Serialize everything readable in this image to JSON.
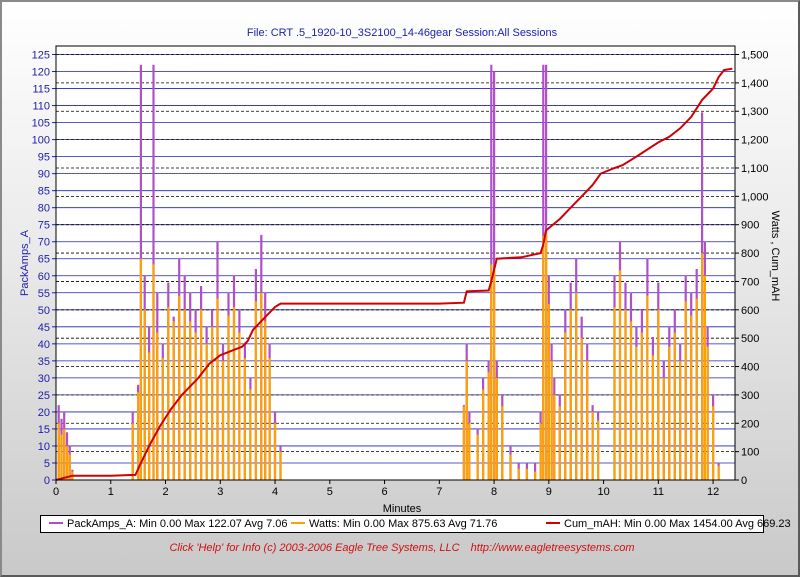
{
  "file_label": "File: CRT .5_1920-10_3S2100_14-46gear   Session:All Sessions",
  "footer": {
    "help": "Click 'Help' for Info  (c) 2003-2006 Eagle Tree Systems, LLC",
    "url": "http://www.eagletreesystems.com"
  },
  "chart_data": {
    "type": "line",
    "xlabel": "Minutes",
    "ylabel_left": "PackAmps_A",
    "ylabel_right": "Watts , Cum_mAH",
    "xlim": [
      0,
      12.4
    ],
    "ylim_left": [
      0,
      127.5
    ],
    "ylim_right": [
      0,
      1530
    ],
    "x_ticks": [
      0,
      1,
      2,
      3,
      4,
      5,
      6,
      7,
      8,
      9,
      10,
      11,
      12
    ],
    "y_ticks_left": [
      0,
      5,
      10,
      15,
      20,
      25,
      30,
      35,
      40,
      45,
      50,
      55,
      60,
      65,
      70,
      75,
      80,
      85,
      90,
      95,
      100,
      105,
      110,
      115,
      120,
      125
    ],
    "y_ticks_right": [
      0,
      100,
      200,
      300,
      400,
      500,
      600,
      700,
      800,
      900,
      1000,
      1100,
      1200,
      1300,
      1400,
      1500
    ],
    "y_tick_labels_right": [
      "0",
      "100",
      "200",
      "300",
      "400",
      "500",
      "600",
      "700",
      "800",
      "900",
      "1,000",
      "1,100",
      "1,200",
      "1,300",
      "1,400",
      "1,500"
    ],
    "grid": true,
    "legend_placement": "bottom",
    "colors": {
      "PackAmps_A": "#b050c8",
      "Watts": "#ffa000",
      "Cum_mAH": "#d00000"
    },
    "legend": [
      "PackAmps_A:  Min 0.00 Max 122.07 Avg 7.06",
      "Watts:  Min 0.00 Max 875.63 Avg 71.76",
      "Cum_mAH:  Min 0.00 Max 1454.00 Avg 669.23"
    ],
    "series": [
      {
        "name": "Cum_mAH",
        "axis": "right",
        "x": [
          0,
          0.3,
          0.5,
          1.0,
          1.45,
          1.55,
          1.7,
          1.9,
          2.1,
          2.3,
          2.6,
          2.8,
          3.0,
          3.2,
          3.4,
          3.5,
          3.6,
          3.75,
          3.9,
          4.0,
          4.1,
          4.5,
          5.0,
          6.0,
          7.0,
          7.45,
          7.5,
          7.9,
          7.95,
          8.05,
          8.5,
          8.85,
          8.9,
          8.95,
          9.2,
          9.4,
          9.6,
          9.8,
          9.95,
          10.2,
          10.35,
          10.6,
          11.0,
          11.2,
          11.4,
          11.6,
          11.8,
          12.0,
          12.1,
          12.2,
          12.35
        ],
        "y": [
          0,
          15,
          15,
          15,
          18,
          60,
          120,
          190,
          250,
          300,
          360,
          410,
          440,
          455,
          470,
          490,
          530,
          560,
          590,
          610,
          622,
          622,
          622,
          622,
          622,
          625,
          665,
          668,
          700,
          780,
          785,
          800,
          830,
          880,
          920,
          960,
          1000,
          1040,
          1080,
          1100,
          1110,
          1140,
          1190,
          1210,
          1240,
          1280,
          1340,
          1380,
          1420,
          1445,
          1450
        ]
      },
      {
        "name": "PackAmps_A",
        "axis": "left",
        "x": [
          0.05,
          0.1,
          0.15,
          0.2,
          0.25,
          0.3,
          1.4,
          1.5,
          1.55,
          1.62,
          1.7,
          1.78,
          1.85,
          1.95,
          2.05,
          2.15,
          2.25,
          2.35,
          2.45,
          2.55,
          2.65,
          2.75,
          2.85,
          2.95,
          3.05,
          3.15,
          3.25,
          3.35,
          3.45,
          3.55,
          3.65,
          3.75,
          3.82,
          3.9,
          4.0,
          4.1,
          7.45,
          7.5,
          7.55,
          7.7,
          7.8,
          7.9,
          7.95,
          8.0,
          8.05,
          8.15,
          8.3,
          8.45,
          8.6,
          8.75,
          8.85,
          8.9,
          8.95,
          9.0,
          9.05,
          9.1,
          9.2,
          9.3,
          9.4,
          9.5,
          9.6,
          9.7,
          9.8,
          9.9,
          10.2,
          10.3,
          10.4,
          10.5,
          10.6,
          10.7,
          10.8,
          10.9,
          11.0,
          11.1,
          11.2,
          11.3,
          11.4,
          11.5,
          11.6,
          11.7,
          11.8,
          11.85,
          11.9,
          12.0,
          12.1
        ],
        "y": [
          22,
          18,
          20,
          14,
          10,
          3,
          20,
          28,
          122,
          60,
          45,
          122,
          55,
          40,
          58,
          48,
          65,
          60,
          55,
          50,
          57,
          45,
          50,
          70,
          40,
          55,
          60,
          50,
          40,
          30,
          62,
          72,
          55,
          40,
          20,
          10,
          22,
          40,
          20,
          15,
          30,
          35,
          122,
          120,
          35,
          25,
          10,
          5,
          5,
          5,
          20,
          122,
          122,
          60,
          40,
          30,
          25,
          50,
          58,
          65,
          48,
          40,
          22,
          20,
          60,
          70,
          58,
          55,
          45,
          50,
          65,
          42,
          58,
          35,
          45,
          50,
          40,
          60,
          55,
          62,
          108,
          70,
          45,
          25,
          5
        ]
      },
      {
        "name": "Watts",
        "axis": "right",
        "x": [
          0.05,
          0.1,
          0.15,
          0.2,
          0.25,
          0.3,
          1.4,
          1.5,
          1.55,
          1.62,
          1.7,
          1.78,
          1.85,
          1.95,
          2.05,
          2.15,
          2.25,
          2.35,
          2.45,
          2.55,
          2.65,
          2.75,
          2.85,
          2.95,
          3.05,
          3.15,
          3.25,
          3.35,
          3.45,
          3.55,
          3.65,
          3.75,
          3.82,
          3.9,
          4.0,
          4.1,
          7.45,
          7.5,
          7.55,
          7.7,
          7.8,
          7.9,
          7.95,
          8.0,
          8.05,
          8.15,
          8.3,
          8.45,
          8.6,
          8.75,
          8.85,
          8.9,
          8.95,
          9.0,
          9.05,
          9.1,
          9.2,
          9.3,
          9.4,
          9.5,
          9.6,
          9.7,
          9.8,
          9.9,
          10.2,
          10.3,
          10.4,
          10.5,
          10.6,
          10.7,
          10.8,
          10.9,
          11.0,
          11.1,
          11.2,
          11.3,
          11.4,
          11.5,
          11.6,
          11.7,
          11.8,
          11.85,
          11.9,
          12.0,
          12.1
        ],
        "y": [
          200,
          160,
          180,
          120,
          90,
          30,
          200,
          310,
          780,
          600,
          450,
          760,
          520,
          430,
          610,
          560,
          650,
          600,
          560,
          520,
          600,
          480,
          540,
          640,
          420,
          580,
          610,
          520,
          430,
          320,
          630,
          660,
          560,
          430,
          200,
          100,
          260,
          420,
          200,
          160,
          320,
          380,
          760,
          740,
          360,
          260,
          90,
          40,
          40,
          30,
          200,
          860,
          875,
          620,
          420,
          300,
          260,
          520,
          600,
          660,
          500,
          420,
          240,
          210,
          610,
          740,
          600,
          560,
          470,
          520,
          650,
          440,
          600,
          360,
          470,
          520,
          420,
          630,
          580,
          640,
          800,
          720,
          470,
          260,
          50
        ]
      }
    ]
  }
}
